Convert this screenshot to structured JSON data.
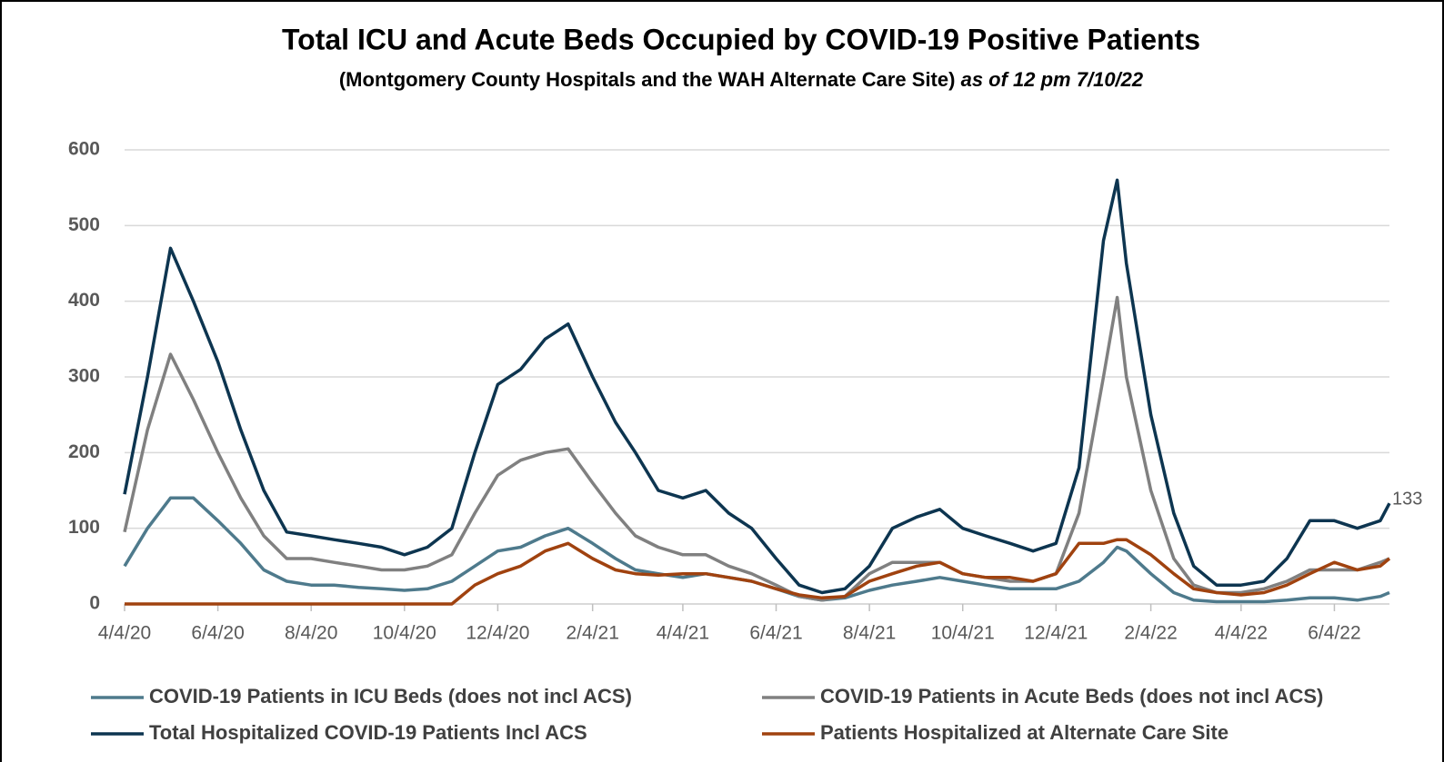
{
  "chart_data": {
    "type": "line",
    "title": "Total ICU and Acute Beds Occupied by COVID-19 Positive Patients",
    "subtitle": "(Montgomery County Hospitals and the WAH Alternate Care Site)",
    "subtitle_italic": "as of  12 pm 7/10/22",
    "x": [
      "4/4/20",
      "4/19/20",
      "5/4/20",
      "5/19/20",
      "6/4/20",
      "6/19/20",
      "7/4/20",
      "7/19/20",
      "8/4/20",
      "8/19/20",
      "9/4/20",
      "9/19/20",
      "10/4/20",
      "10/19/20",
      "11/4/20",
      "11/19/20",
      "12/4/20",
      "12/19/20",
      "1/4/21",
      "1/19/21",
      "2/4/21",
      "2/19/21",
      "3/4/21",
      "3/19/21",
      "4/4/21",
      "4/19/21",
      "5/4/21",
      "5/19/21",
      "6/4/21",
      "6/19/21",
      "7/4/21",
      "7/19/21",
      "8/4/21",
      "8/19/21",
      "9/4/21",
      "9/19/21",
      "10/4/21",
      "10/19/21",
      "11/4/21",
      "11/19/21",
      "12/4/21",
      "12/19/21",
      "1/4/22",
      "1/13/22",
      "1/19/22",
      "2/4/22",
      "2/19/22",
      "3/4/22",
      "3/19/22",
      "4/4/22",
      "4/19/22",
      "5/4/22",
      "5/19/22",
      "6/4/22",
      "6/19/22",
      "7/4/22",
      "7/10/22"
    ],
    "series": [
      {
        "name": "COVID-19 Patients in  ICU Beds (does not incl ACS)",
        "color": "#4e7a8c",
        "values": [
          50,
          100,
          140,
          140,
          110,
          80,
          45,
          30,
          25,
          25,
          22,
          20,
          18,
          20,
          30,
          50,
          70,
          75,
          90,
          100,
          80,
          60,
          45,
          40,
          35,
          40,
          35,
          30,
          20,
          10,
          5,
          8,
          18,
          25,
          30,
          35,
          30,
          25,
          20,
          20,
          20,
          30,
          55,
          75,
          70,
          40,
          15,
          5,
          3,
          3,
          3,
          5,
          8,
          8,
          5,
          10,
          15
        ]
      },
      {
        "name": "COVID-19 Patients in Acute Beds (does not incl ACS)",
        "color": "#808080",
        "values": [
          95,
          230,
          330,
          270,
          200,
          140,
          90,
          60,
          60,
          55,
          50,
          45,
          45,
          50,
          65,
          120,
          170,
          190,
          200,
          205,
          160,
          120,
          90,
          75,
          65,
          65,
          50,
          40,
          25,
          10,
          5,
          10,
          40,
          55,
          55,
          55,
          40,
          35,
          30,
          30,
          40,
          120,
          300,
          405,
          300,
          150,
          60,
          25,
          15,
          15,
          20,
          30,
          45,
          45,
          45,
          55,
          60
        ]
      },
      {
        "name": "Total Hospitalized COVID-19 Patients Incl ACS",
        "color": "#0d3550",
        "data_label": "last",
        "values": [
          145,
          300,
          470,
          400,
          320,
          230,
          150,
          95,
          90,
          85,
          80,
          75,
          65,
          75,
          100,
          200,
          290,
          310,
          350,
          370,
          300,
          240,
          200,
          150,
          140,
          150,
          120,
          100,
          60,
          25,
          15,
          20,
          50,
          100,
          115,
          125,
          100,
          90,
          80,
          70,
          80,
          180,
          480,
          560,
          450,
          250,
          120,
          50,
          25,
          25,
          30,
          60,
          110,
          110,
          100,
          110,
          133
        ]
      },
      {
        "name": "Patients Hospitalized at Alternate Care Site",
        "color": "#a0420f",
        "values": [
          0,
          0,
          0,
          0,
          0,
          0,
          0,
          0,
          0,
          0,
          0,
          0,
          0,
          0,
          0,
          25,
          40,
          50,
          70,
          80,
          60,
          45,
          40,
          38,
          40,
          40,
          35,
          30,
          20,
          12,
          8,
          10,
          30,
          40,
          50,
          55,
          40,
          35,
          35,
          30,
          40,
          80,
          80,
          85,
          85,
          65,
          40,
          20,
          15,
          12,
          15,
          25,
          40,
          55,
          45,
          50,
          60
        ]
      }
    ],
    "xlim": [
      "4/4/20",
      "7/10/22"
    ],
    "xticks": [
      "4/4/20",
      "6/4/20",
      "8/4/20",
      "10/4/20",
      "12/4/20",
      "2/4/21",
      "4/4/21",
      "6/4/21",
      "8/4/21",
      "10/4/21",
      "12/4/21",
      "2/4/22",
      "4/4/22",
      "6/4/22"
    ],
    "ylim": [
      0,
      600
    ],
    "yticks": [
      0,
      100,
      200,
      300,
      400,
      500,
      600
    ],
    "grid": true,
    "legend": "bottom"
  }
}
